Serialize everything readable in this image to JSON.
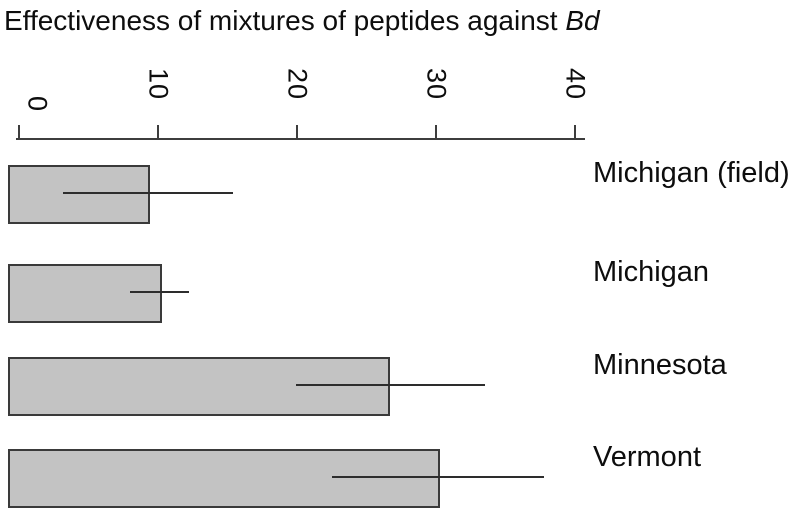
{
  "title": {
    "text": "Effectiveness of mixtures of peptides against ",
    "italic_suffix": "Bd"
  },
  "chart_data": {
    "type": "bar",
    "orientation": "horizontal",
    "title": "Effectiveness of mixtures of peptides against Bd",
    "categories": [
      "Michigan (field)",
      "Michigan",
      "Minnesota",
      "Vermont"
    ],
    "values": [
      9.4,
      10.3,
      26.7,
      30.3
    ],
    "error_low": [
      3.2,
      8.0,
      19.9,
      22.5
    ],
    "error_high": [
      15.4,
      12.2,
      33.5,
      37.8
    ],
    "xlabel": "",
    "ylabel": "",
    "xlim": [
      0,
      40
    ],
    "x_ticks": [
      "0",
      "10",
      "20",
      "30",
      "40"
    ],
    "x_tick_values": [
      0,
      10,
      20,
      30,
      40
    ],
    "axis_position": "top",
    "grid": false,
    "legend": false,
    "error_bar_caps": false,
    "bar_color": "#c3c3c3",
    "bar_border_color": "#3a3a3a",
    "error_bar_color": "#2d2d2d",
    "axis_color": "#3d3d3d",
    "text_color": "#0d0d0d",
    "background_color": "#ffffff"
  }
}
